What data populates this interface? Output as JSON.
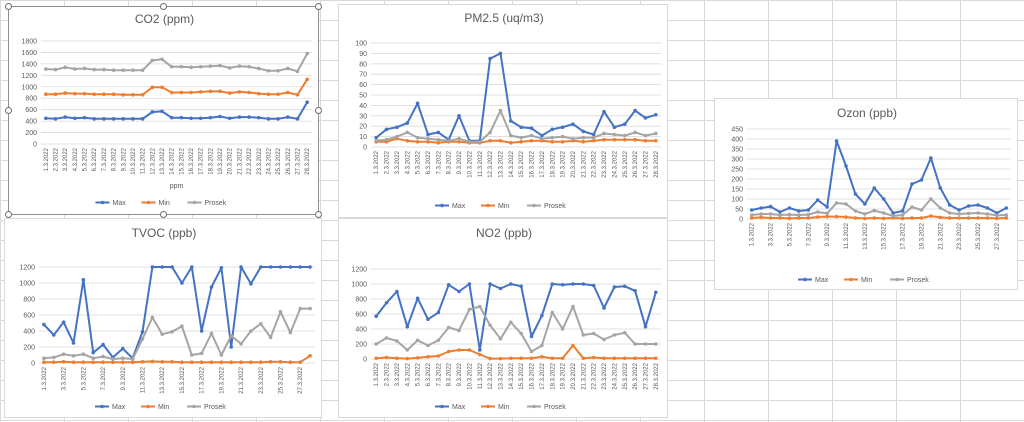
{
  "chart_data": [
    {
      "type": "line",
      "title": "CO2 (ppm)",
      "xlabel": "ppm",
      "ylim": [
        0,
        1800
      ],
      "yticks": [
        0,
        200,
        400,
        600,
        800,
        1000,
        1200,
        1400,
        1600,
        1800
      ],
      "categories": [
        "1.3.2022",
        "2.3.2022",
        "3.3.2022",
        "4.3.2022",
        "5.3.2022",
        "6.3.2022",
        "7.3.2022",
        "8.3.2022",
        "9.3.2022",
        "10.3.2022",
        "11.3.2022",
        "12.3.2022",
        "13.3.2022",
        "14.3.2022",
        "15.3.2022",
        "16.3.2022",
        "17.3.2022",
        "18.3.2022",
        "19.3.2022",
        "20.3.2022",
        "21.3.2022",
        "22.3.2022",
        "23.3.2022",
        "24.3.2022",
        "25.3.2022",
        "26.3.2022",
        "27.3.2022",
        "28.3.2022"
      ],
      "series": [
        {
          "name": "Max",
          "color": "#4472c4",
          "values": [
            450,
            440,
            470,
            450,
            460,
            440,
            440,
            440,
            440,
            440,
            440,
            560,
            570,
            460,
            460,
            450,
            450,
            460,
            480,
            450,
            470,
            470,
            460,
            440,
            440,
            470,
            440,
            730
          ]
        },
        {
          "name": "Min",
          "color": "#ed7d31",
          "values": [
            870,
            870,
            890,
            880,
            880,
            870,
            870,
            870,
            860,
            860,
            860,
            990,
            990,
            900,
            900,
            900,
            910,
            920,
            920,
            890,
            910,
            900,
            880,
            870,
            870,
            900,
            860,
            1130
          ]
        },
        {
          "name": "Prosek",
          "color": "#a5a5a5",
          "values": [
            1310,
            1300,
            1340,
            1310,
            1320,
            1300,
            1300,
            1290,
            1290,
            1290,
            1290,
            1460,
            1480,
            1350,
            1350,
            1340,
            1350,
            1360,
            1370,
            1330,
            1360,
            1350,
            1320,
            1280,
            1280,
            1320,
            1270,
            1580
          ]
        }
      ],
      "legend": "bottom",
      "grid": true
    },
    {
      "type": "line",
      "title": "PM2.5 (uq/m3)",
      "ylim": [
        0,
        100
      ],
      "yticks": [
        0,
        10,
        20,
        30,
        40,
        50,
        60,
        70,
        80,
        90,
        100
      ],
      "categories": [
        "1.3.2022",
        "2.3.2022",
        "3.3.2022",
        "4.3.2022",
        "5.3.2022",
        "6.3.2022",
        "7.3.2022",
        "8.3.2022",
        "9.3.2022",
        "10.3.2022",
        "11.3.2022",
        "12.3.2022",
        "13.3.2022",
        "14.3.2022",
        "15.3.2022",
        "16.3.2022",
        "17.3.2022",
        "18.3.2022",
        "19.3.2022",
        "20.3.2022",
        "21.3.2022",
        "22.3.2022",
        "23.3.2022",
        "24.3.2022",
        "25.3.2022",
        "26.3.2022",
        "27.3.2022",
        "28.3.2022"
      ],
      "series": [
        {
          "name": "Max",
          "color": "#4472c4",
          "values": [
            9,
            17,
            19,
            23,
            42,
            12,
            14,
            7,
            30,
            6,
            6,
            85,
            90,
            25,
            19,
            18,
            11,
            17,
            19,
            22,
            15,
            12,
            34,
            19,
            22,
            35,
            28,
            31
          ]
        },
        {
          "name": "Min",
          "color": "#ed7d31",
          "values": [
            5,
            5,
            8,
            6,
            5,
            5,
            4,
            5,
            5,
            4,
            4,
            6,
            6,
            4,
            5,
            6,
            6,
            5,
            5,
            6,
            5,
            6,
            7,
            7,
            7,
            7,
            6,
            6
          ]
        },
        {
          "name": "Prosek",
          "color": "#a5a5a5",
          "values": [
            6,
            7,
            10,
            14,
            9,
            8,
            7,
            6,
            8,
            5,
            5,
            14,
            35,
            11,
            9,
            11,
            8,
            9,
            10,
            8,
            9,
            9,
            13,
            12,
            11,
            14,
            11,
            13
          ]
        }
      ],
      "legend": "bottom",
      "grid": true
    },
    {
      "type": "line",
      "title": "Ozon (ppb)",
      "ylim": [
        0,
        450
      ],
      "yticks": [
        0,
        50,
        100,
        150,
        200,
        250,
        300,
        350,
        400,
        450
      ],
      "categories": [
        "1.3.2022",
        "2.3.2022",
        "3.3.2022",
        "4.3.2022",
        "5.3.2022",
        "6.3.2022",
        "7.3.2022",
        "8.3.2022",
        "9.3.2022",
        "10.3.2022",
        "11.3.2022",
        "12.3.2022",
        "13.3.2022",
        "14.3.2022",
        "15.3.2022",
        "16.3.2022",
        "17.3.2022",
        "18.3.2022",
        "19.3.2022",
        "20.3.2022",
        "21.3.2022",
        "22.3.2022",
        "23.3.2022",
        "24.3.2022",
        "25.3.2022",
        "26.3.2022",
        "27.3.2022",
        "28.3.2022"
      ],
      "tick_labels": [
        "1.3.2022",
        "3.3.2022",
        "5.3.2022",
        "7.3.2022",
        "9.3.2022",
        "11.3.2022",
        "13.3.2022",
        "15.3.2022",
        "17.3.2022",
        "19.3.2022",
        "21.3.2022",
        "23.3.2022",
        "25.3.2022",
        "27.3.2022"
      ],
      "series": [
        {
          "name": "Max",
          "color": "#4472c4",
          "values": [
            45,
            55,
            62,
            35,
            55,
            40,
            45,
            95,
            60,
            390,
            265,
            125,
            75,
            155,
            100,
            30,
            40,
            175,
            195,
            305,
            155,
            70,
            45,
            65,
            70,
            55,
            30,
            55
          ]
        },
        {
          "name": "Min",
          "color": "#ed7d31",
          "values": [
            5,
            8,
            5,
            5,
            3,
            5,
            5,
            10,
            12,
            12,
            10,
            5,
            3,
            5,
            3,
            5,
            3,
            5,
            5,
            15,
            8,
            5,
            5,
            5,
            5,
            5,
            3,
            5
          ]
        },
        {
          "name": "Prosek",
          "color": "#a5a5a5",
          "values": [
            20,
            25,
            25,
            20,
            22,
            20,
            22,
            35,
            28,
            80,
            75,
            40,
            25,
            42,
            30,
            15,
            20,
            60,
            45,
            100,
            55,
            30,
            25,
            28,
            30,
            25,
            18,
            20
          ]
        }
      ],
      "legend": "bottom",
      "grid": true
    },
    {
      "type": "line",
      "title": "TVOC (ppb)",
      "ylim": [
        0,
        1200
      ],
      "yticks": [
        0,
        200,
        400,
        600,
        800,
        1000,
        1200
      ],
      "categories": [
        "1.3.2022",
        "2.3.2022",
        "3.3.2022",
        "4.3.2022",
        "5.3.2022",
        "6.3.2022",
        "7.3.2022",
        "8.3.2022",
        "9.3.2022",
        "10.3.2022",
        "11.3.2022",
        "12.3.2022",
        "13.3.2022",
        "14.3.2022",
        "15.3.2022",
        "16.3.2022",
        "17.3.2022",
        "18.3.2022",
        "19.3.2022",
        "20.3.2022",
        "21.3.2022",
        "22.3.2022",
        "23.3.2022",
        "24.3.2022",
        "25.3.2022",
        "26.3.2022",
        "27.3.2022",
        "28.3.2022"
      ],
      "tick_labels": [
        "1.3.2022",
        "3.3.2022",
        "5.3.2022",
        "7.3.2022",
        "9.3.2022",
        "11.3.2022",
        "13.3.2022",
        "15.3.2022",
        "17.3.2022",
        "19.3.2022",
        "21.3.2022",
        "23.3.2022",
        "25.3.2022",
        "27.3.2022"
      ],
      "series": [
        {
          "name": "Max",
          "color": "#4472c4",
          "values": [
            480,
            350,
            510,
            250,
            1040,
            130,
            230,
            70,
            180,
            60,
            390,
            1200,
            1200,
            1200,
            1000,
            1200,
            400,
            950,
            1190,
            200,
            1200,
            990,
            1200,
            1200,
            1200,
            1200,
            1200,
            1200
          ]
        },
        {
          "name": "Min",
          "color": "#ed7d31",
          "values": [
            10,
            10,
            15,
            10,
            10,
            10,
            10,
            10,
            10,
            10,
            15,
            20,
            15,
            15,
            10,
            10,
            10,
            10,
            10,
            10,
            10,
            10,
            10,
            15,
            15,
            10,
            10,
            90
          ]
        },
        {
          "name": "Prosek",
          "color": "#a5a5a5",
          "values": [
            60,
            70,
            110,
            90,
            110,
            60,
            80,
            50,
            60,
            50,
            300,
            570,
            360,
            390,
            460,
            100,
            120,
            370,
            100,
            340,
            240,
            400,
            490,
            320,
            640,
            380,
            680,
            680
          ]
        }
      ],
      "legend": "bottom",
      "grid": true
    },
    {
      "type": "line",
      "title": "NO2 (ppb)",
      "ylim": [
        0,
        1200
      ],
      "yticks": [
        0,
        200,
        400,
        600,
        800,
        1000,
        1200
      ],
      "categories": [
        "1.3.2022",
        "2.3.2022",
        "3.3.2022",
        "4.3.2022",
        "5.3.2022",
        "6.3.2022",
        "7.3.2022",
        "8.3.2022",
        "9.3.2022",
        "10.3.2022",
        "11.3.2022",
        "12.3.2022",
        "13.3.2022",
        "14.3.2022",
        "15.3.2022",
        "16.3.2022",
        "17.3.2022",
        "18.3.2022",
        "19.3.2022",
        "20.3.2022",
        "21.3.2022",
        "22.3.2022",
        "23.3.2022",
        "24.3.2022",
        "25.3.2022",
        "26.3.2022",
        "27.3.2022",
        "28.3.2022"
      ],
      "series": [
        {
          "name": "Max",
          "color": "#4472c4",
          "values": [
            570,
            750,
            900,
            430,
            810,
            530,
            620,
            990,
            900,
            1000,
            120,
            1000,
            940,
            1000,
            970,
            300,
            580,
            1000,
            990,
            1000,
            1000,
            980,
            680,
            960,
            970,
            910,
            430,
            890
          ]
        },
        {
          "name": "Min",
          "color": "#ed7d31",
          "values": [
            10,
            20,
            10,
            5,
            15,
            30,
            40,
            100,
            120,
            120,
            60,
            5,
            5,
            10,
            10,
            10,
            30,
            10,
            10,
            180,
            10,
            20,
            10,
            10,
            10,
            10,
            10,
            10
          ]
        },
        {
          "name": "Prosek",
          "color": "#a5a5a5",
          "values": [
            200,
            280,
            240,
            120,
            250,
            180,
            250,
            420,
            380,
            660,
            700,
            450,
            270,
            490,
            340,
            100,
            180,
            620,
            400,
            700,
            320,
            340,
            260,
            320,
            350,
            200,
            200,
            200
          ]
        }
      ],
      "legend": "bottom",
      "grid": true
    }
  ]
}
